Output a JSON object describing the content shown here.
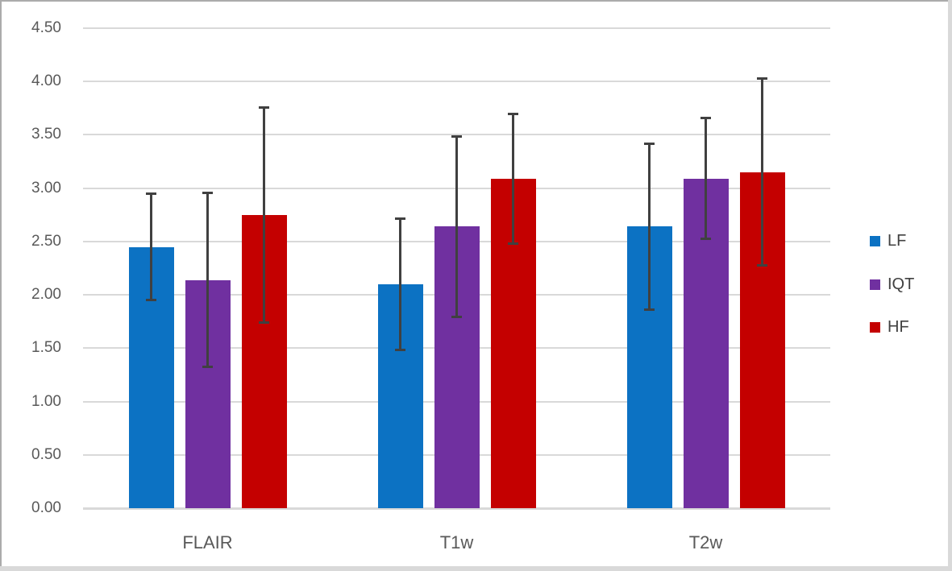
{
  "chart_data": {
    "type": "bar",
    "title": "",
    "xlabel": "",
    "ylabel": "",
    "categories": [
      "FLAIR",
      "T1w",
      "T2w"
    ],
    "series": [
      {
        "name": "LF",
        "color": "#0c72c3",
        "values": [
          2.45,
          2.1,
          2.64
        ],
        "errors": [
          0.5,
          0.62,
          0.78
        ]
      },
      {
        "name": "IQT",
        "color": "#7030a0",
        "values": [
          2.14,
          2.64,
          3.09
        ],
        "errors": [
          0.82,
          0.85,
          0.57
        ]
      },
      {
        "name": "HF",
        "color": "#c40000",
        "values": [
          2.75,
          3.09,
          3.15
        ],
        "errors": [
          1.01,
          0.61,
          0.88
        ]
      }
    ],
    "ylim": [
      0,
      4.5
    ],
    "ytick_step": 0.5,
    "ytick_labels": [
      "0.00",
      "0.50",
      "1.00",
      "1.50",
      "2.00",
      "2.50",
      "3.00",
      "3.50",
      "4.00",
      "4.50"
    ],
    "grid": true,
    "legend_position": "right",
    "colors": {
      "gridline": "#d9d9d9",
      "axis_text": "#595959",
      "legend_text": "#404040",
      "error_bar": "#404040",
      "frame_border": "#ababab"
    }
  }
}
